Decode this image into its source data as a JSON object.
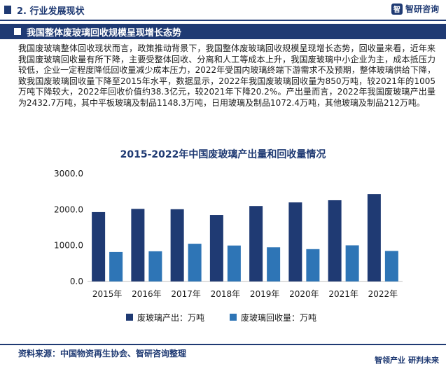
{
  "header": {
    "section": "2. 行业发展现状",
    "logo_glyph": "智",
    "logo_text": "智研咨询"
  },
  "banner": {
    "title": "我国整体废玻璃回收规模呈现增长态势"
  },
  "paragraph": "我国废玻璃整体回收现状而言，政策推动背景下，我国整体废玻璃回收规模呈现增长态势，回收量来看，近年来我国废玻璃回收量有所下降，主要受整体回收、分离和人工等成本上升，我国废玻璃中小企业为主，成本抵压力较低，企业一定程度降低回收量减少成本压力，2022年受国内玻璃终端下游需求不及预期，整体玻璃供给下降，致我国废玻璃回收量下降至2015年水平，数据显示，2022年我国废玻璃回收量为850万吨，较2021年的1005万吨下降较大，2022年回收价值约38.3亿元，较2021年下降20.2%。产出量而言，2022年我国废玻璃产出量为2432.7万吨，其中平板玻璃及制品1148.3万吨，日用玻璃及制品1072.4万吨，其他玻璃及制品212万吨。",
  "colors": {
    "primary": "#1f3a73",
    "series_output": "#1f3a73",
    "series_recycle": "#2e75b6"
  },
  "chart_data": {
    "type": "bar",
    "title": "2015-2022年中国废玻璃产出量和回收量情况",
    "categories": [
      "2015年",
      "2016年",
      "2017年",
      "2018年",
      "2019年",
      "2020年",
      "2021年",
      "2022年"
    ],
    "series": [
      {
        "name": "废玻璃产出：万吨",
        "color": "#1f3a73",
        "values": [
          1930,
          2020,
          2010,
          1850,
          2100,
          2200,
          2260,
          2432.7
        ]
      },
      {
        "name": "废玻璃回收量：万吨",
        "color": "#2e75b6",
        "values": [
          820,
          840,
          1050,
          1000,
          950,
          900,
          1005,
          850
        ]
      }
    ],
    "yticks": [
      "0.0",
      "1000.0",
      "2000.0",
      "3000.0"
    ],
    "ylim": [
      0,
      3000
    ],
    "legend": "bottom",
    "grid": false
  },
  "footer": {
    "source": "资料来源：中国物资再生协会、智研咨询整理",
    "logo_left": "智领产业",
    "logo_right": "研判未来"
  }
}
